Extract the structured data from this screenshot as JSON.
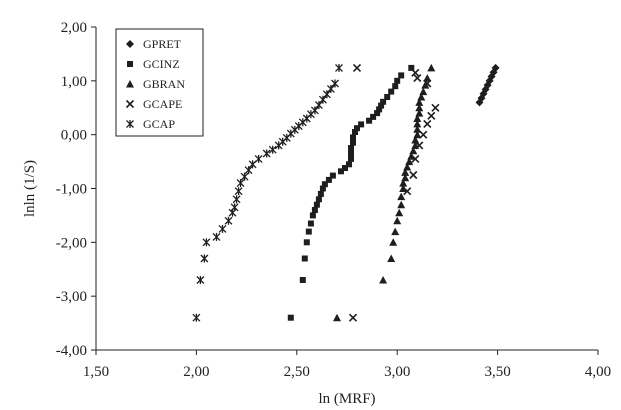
{
  "chart_data": {
    "type": "scatter",
    "title": "",
    "xlabel": "ln (MRF)",
    "ylabel": "lnln (1/S)",
    "xlim": [
      1.5,
      4.0
    ],
    "ylim": [
      -4.0,
      2.0
    ],
    "x_ticks": [
      1.5,
      2.0,
      2.5,
      3.0,
      3.5,
      4.0
    ],
    "y_ticks": [
      -4.0,
      -3.0,
      -2.0,
      -1.0,
      0.0,
      1.0,
      2.0
    ],
    "x_tick_labels": [
      "1,50",
      "2,00",
      "2,50",
      "3,00",
      "3,50",
      "4,00"
    ],
    "y_tick_labels": [
      "-4,00",
      "-3,00",
      "-2,00",
      "-1,00",
      "0,00",
      "1,00",
      "2,00"
    ],
    "grid": false,
    "legend_position": "top-left",
    "marker_color": "#1e1e1e",
    "series": [
      {
        "name": "GPRET",
        "marker": "diamond",
        "points": [
          [
            3.41,
            0.6
          ],
          [
            3.42,
            0.68
          ],
          [
            3.43,
            0.76
          ],
          [
            3.44,
            0.84
          ],
          [
            3.45,
            0.92
          ],
          [
            3.46,
            1.0
          ],
          [
            3.47,
            1.08
          ],
          [
            3.48,
            1.16
          ],
          [
            3.49,
            1.24
          ]
        ]
      },
      {
        "name": "GCINZ",
        "marker": "square",
        "points": [
          [
            2.47,
            -3.4
          ],
          [
            2.53,
            -2.7
          ],
          [
            2.54,
            -2.3
          ],
          [
            2.55,
            -2.0
          ],
          [
            2.56,
            -1.8
          ],
          [
            2.57,
            -1.65
          ],
          [
            2.58,
            -1.5
          ],
          [
            2.59,
            -1.4
          ],
          [
            2.6,
            -1.3
          ],
          [
            2.61,
            -1.2
          ],
          [
            2.62,
            -1.1
          ],
          [
            2.63,
            -1.0
          ],
          [
            2.64,
            -0.92
          ],
          [
            2.66,
            -0.84
          ],
          [
            2.68,
            -0.76
          ],
          [
            2.72,
            -0.68
          ],
          [
            2.74,
            -0.62
          ],
          [
            2.76,
            -0.55
          ],
          [
            2.77,
            -0.45
          ],
          [
            2.77,
            -0.35
          ],
          [
            2.77,
            -0.25
          ],
          [
            2.78,
            -0.15
          ],
          [
            2.78,
            -0.05
          ],
          [
            2.79,
            0.05
          ],
          [
            2.8,
            0.12
          ],
          [
            2.82,
            0.19
          ],
          [
            2.86,
            0.26
          ],
          [
            2.88,
            0.33
          ],
          [
            2.9,
            0.4
          ],
          [
            2.91,
            0.47
          ],
          [
            2.92,
            0.54
          ],
          [
            2.93,
            0.61
          ],
          [
            2.95,
            0.7
          ],
          [
            2.97,
            0.8
          ],
          [
            2.99,
            0.9
          ],
          [
            3.0,
            1.0
          ],
          [
            3.02,
            1.1
          ],
          [
            3.07,
            1.24
          ]
        ]
      },
      {
        "name": "GBRAN",
        "marker": "triangle",
        "points": [
          [
            2.7,
            -3.4
          ],
          [
            2.93,
            -2.7
          ],
          [
            2.97,
            -2.3
          ],
          [
            2.98,
            -2.0
          ],
          [
            2.99,
            -1.8
          ],
          [
            3.0,
            -1.6
          ],
          [
            3.01,
            -1.45
          ],
          [
            3.02,
            -1.3
          ],
          [
            3.02,
            -1.15
          ],
          [
            3.03,
            -1.0
          ],
          [
            3.03,
            -0.9
          ],
          [
            3.04,
            -0.8
          ],
          [
            3.04,
            -0.7
          ],
          [
            3.05,
            -0.6
          ],
          [
            3.06,
            -0.5
          ],
          [
            3.07,
            -0.4
          ],
          [
            3.08,
            -0.3
          ],
          [
            3.09,
            -0.2
          ],
          [
            3.09,
            -0.1
          ],
          [
            3.1,
            0.0
          ],
          [
            3.1,
            0.1
          ],
          [
            3.1,
            0.2
          ],
          [
            3.1,
            0.3
          ],
          [
            3.11,
            0.4
          ],
          [
            3.11,
            0.5
          ],
          [
            3.11,
            0.6
          ],
          [
            3.12,
            0.7
          ],
          [
            3.13,
            0.8
          ],
          [
            3.14,
            0.92
          ],
          [
            3.15,
            1.05
          ],
          [
            3.17,
            1.24
          ]
        ]
      },
      {
        "name": "GCAPE",
        "marker": "x",
        "points": [
          [
            2.78,
            -3.4
          ],
          [
            3.05,
            -1.05
          ],
          [
            3.08,
            -0.75
          ],
          [
            3.09,
            -0.45
          ],
          [
            3.11,
            -0.2
          ],
          [
            3.13,
            0.0
          ],
          [
            3.15,
            0.2
          ],
          [
            3.17,
            0.35
          ],
          [
            3.19,
            0.5
          ],
          [
            3.15,
            0.95
          ],
          [
            3.1,
            1.05
          ],
          [
            3.09,
            1.15
          ],
          [
            2.8,
            1.24
          ]
        ]
      },
      {
        "name": "GCAP",
        "marker": "star",
        "points": [
          [
            2.0,
            -3.4
          ],
          [
            2.02,
            -2.7
          ],
          [
            2.04,
            -2.3
          ],
          [
            2.05,
            -2.0
          ],
          [
            2.1,
            -1.9
          ],
          [
            2.13,
            -1.75
          ],
          [
            2.16,
            -1.6
          ],
          [
            2.18,
            -1.45
          ],
          [
            2.19,
            -1.35
          ],
          [
            2.2,
            -1.2
          ],
          [
            2.21,
            -1.05
          ],
          [
            2.22,
            -0.9
          ],
          [
            2.24,
            -0.78
          ],
          [
            2.26,
            -0.66
          ],
          [
            2.28,
            -0.55
          ],
          [
            2.31,
            -0.45
          ],
          [
            2.35,
            -0.35
          ],
          [
            2.38,
            -0.28
          ],
          [
            2.41,
            -0.2
          ],
          [
            2.43,
            -0.13
          ],
          [
            2.45,
            -0.06
          ],
          [
            2.47,
            0.02
          ],
          [
            2.49,
            0.09
          ],
          [
            2.51,
            0.16
          ],
          [
            2.53,
            0.23
          ],
          [
            2.55,
            0.3
          ],
          [
            2.57,
            0.38
          ],
          [
            2.59,
            0.45
          ],
          [
            2.61,
            0.55
          ],
          [
            2.63,
            0.65
          ],
          [
            2.65,
            0.75
          ],
          [
            2.67,
            0.85
          ],
          [
            2.69,
            0.95
          ],
          [
            2.71,
            1.24
          ]
        ]
      }
    ]
  }
}
